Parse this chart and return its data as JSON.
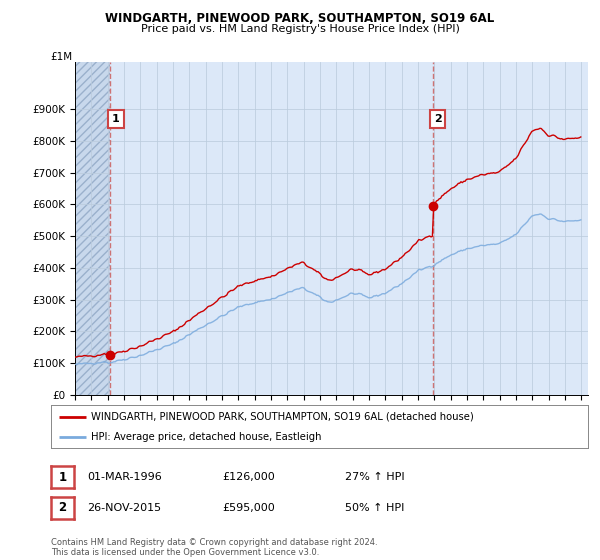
{
  "title": "WINDGARTH, PINEWOOD PARK, SOUTHAMPTON, SO19 6AL",
  "subtitle": "Price paid vs. HM Land Registry's House Price Index (HPI)",
  "legend_line1": "WINDGARTH, PINEWOOD PARK, SOUTHAMPTON, SO19 6AL (detached house)",
  "legend_line2": "HPI: Average price, detached house, Eastleigh",
  "annotation1_label": "1",
  "annotation1_date": "01-MAR-1996",
  "annotation1_price": "£126,000",
  "annotation1_hpi": "27% ↑ HPI",
  "annotation1_year": 1996.17,
  "annotation1_value": 126000,
  "annotation2_label": "2",
  "annotation2_date": "26-NOV-2015",
  "annotation2_price": "£595,000",
  "annotation2_hpi": "50% ↑ HPI",
  "annotation2_year": 2015.9,
  "annotation2_value": 595000,
  "ylabel_values": [
    "£0",
    "£100K",
    "£200K",
    "£300K",
    "£400K",
    "£500K",
    "£600K",
    "£700K",
    "£800K",
    "£900K"
  ],
  "ylim": [
    0,
    1050000
  ],
  "yticks": [
    0,
    100000,
    200000,
    300000,
    400000,
    500000,
    600000,
    700000,
    800000,
    900000
  ],
  "ylim_top_label": "£1M",
  "hpi_color": "#7aaadd",
  "price_color": "#cc0000",
  "dashed_color": "#cc6666",
  "background_chart": "#dce8f8",
  "background_hatch": "#c8d8ec",
  "grid_color": "#bbccdd",
  "box_edge_color": "#cc4444",
  "footer": "Contains HM Land Registry data © Crown copyright and database right 2024.\nThis data is licensed under the Open Government Licence v3.0."
}
